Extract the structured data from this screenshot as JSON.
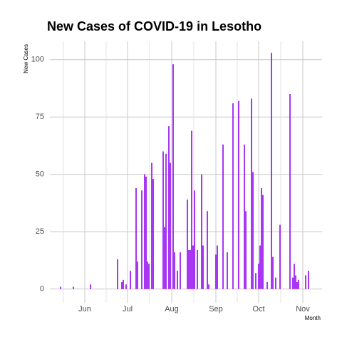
{
  "chart_data": {
    "type": "bar",
    "title": "New Cases of COVID-19 in Lesotho",
    "ylabel": "New Cases",
    "xlabel": "Month",
    "color": "#a020f0",
    "grid": true,
    "ylim": [
      -6,
      108
    ],
    "yticks": [
      0,
      25,
      50,
      75,
      100
    ],
    "categories": [
      null,
      null,
      null,
      null,
      null,
      null,
      null,
      null,
      null,
      null,
      null,
      null,
      null,
      null,
      null,
      null,
      null,
      null,
      null,
      null,
      null,
      null,
      null,
      null,
      "Jun",
      null,
      null,
      null,
      null,
      null,
      null,
      null,
      null,
      null,
      null,
      null,
      null,
      null,
      null,
      null,
      null,
      null,
      null,
      null,
      null,
      null,
      null,
      null,
      null,
      null,
      null,
      null,
      null,
      null,
      "Jul",
      null,
      null,
      null,
      null,
      null,
      null,
      null,
      null,
      null,
      null,
      null,
      null,
      null,
      null,
      null,
      null,
      null,
      null,
      null,
      null,
      null,
      null,
      null,
      null,
      null,
      null,
      null,
      null,
      null,
      null,
      "Aug",
      null,
      null,
      null,
      null,
      null,
      null,
      null,
      null,
      null,
      null,
      null,
      null,
      null,
      null,
      null,
      null,
      null,
      null,
      null,
      null,
      null,
      null,
      null,
      null,
      null,
      null,
      null,
      null,
      null,
      null,
      "Sep",
      null,
      null,
      null,
      null,
      null,
      null,
      null,
      null,
      null,
      null,
      null,
      null,
      null,
      null,
      null,
      null,
      null,
      null,
      null,
      null,
      null,
      null,
      null,
      null,
      null,
      null,
      null,
      null,
      null,
      "Oct",
      null,
      null,
      null,
      null,
      null,
      null,
      null,
      null,
      null,
      null,
      null,
      null,
      null,
      null,
      null,
      null,
      null,
      null,
      null,
      null,
      null,
      null,
      null,
      null,
      null,
      null,
      null,
      null,
      null,
      null,
      "Nov",
      null,
      null,
      null,
      null,
      null,
      null,
      null,
      null,
      null,
      null,
      null,
      null,
      null
    ],
    "values": [
      0,
      0,
      0,
      0,
      0,
      0,
      0,
      1,
      0,
      0,
      0,
      0,
      0,
      0,
      0,
      0,
      1,
      0,
      0,
      0,
      0,
      0,
      0,
      0,
      0,
      0,
      0,
      0,
      2,
      0,
      0,
      0,
      0,
      0,
      0,
      0,
      0,
      0,
      0,
      0,
      0,
      0,
      0,
      0,
      0,
      0,
      0,
      13,
      0,
      0,
      3,
      4,
      0,
      2,
      0,
      0,
      8,
      0,
      0,
      0,
      44,
      12,
      0,
      0,
      43,
      0,
      50,
      49,
      12,
      11,
      0,
      55,
      48,
      0,
      0,
      0,
      0,
      0,
      0,
      60,
      27,
      59,
      0,
      71,
      55,
      0,
      98,
      16,
      0,
      8,
      0,
      16,
      0,
      0,
      0,
      0,
      39,
      17,
      17,
      69,
      19,
      43,
      0,
      17,
      0,
      0,
      50,
      19,
      0,
      0,
      34,
      2,
      0,
      0,
      0,
      0,
      15,
      19,
      0,
      0,
      0,
      63,
      0,
      0,
      16,
      0,
      0,
      0,
      81,
      0,
      0,
      0,
      82,
      0,
      0,
      0,
      63,
      34,
      0,
      0,
      0,
      83,
      51,
      0,
      7,
      0,
      11,
      19,
      44,
      41,
      0,
      0,
      3,
      0,
      0,
      103,
      14,
      0,
      5,
      0,
      0,
      28,
      0,
      0,
      0,
      0,
      0,
      0,
      85,
      0,
      5,
      11,
      6,
      3,
      4,
      0,
      0,
      0,
      0,
      6,
      0,
      8,
      0,
      0,
      0,
      0,
      0,
      0,
      0,
      0,
      0
    ]
  }
}
